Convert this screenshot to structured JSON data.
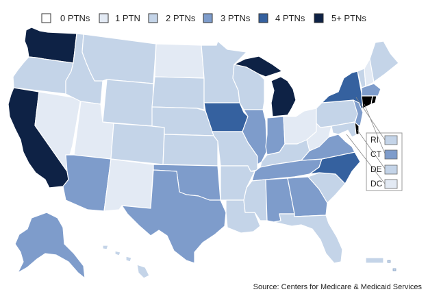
{
  "legend": {
    "items": [
      {
        "label": "0 PTNs",
        "color": "#ffffff"
      },
      {
        "label": "1 PTN",
        "color": "#e3eaf4"
      },
      {
        "label": "2 PTNs",
        "color": "#c4d4e8"
      },
      {
        "label": "3 PTNs",
        "color": "#7e9ccb"
      },
      {
        "label": "4 PTNs",
        "color": "#35619f"
      },
      {
        "label": "5+ PTNs",
        "color": "#0e2245"
      }
    ]
  },
  "small_states": [
    {
      "label": "RI",
      "color": "#c4d4e8"
    },
    {
      "label": "CT",
      "color": "#7e9ccb"
    },
    {
      "label": "DE",
      "color": "#c4d4e8"
    },
    {
      "label": "DC",
      "color": "#e3eaf4"
    }
  ],
  "source": "Source: Centers for Medicare & Medicaid Services",
  "states": {
    "WA": "#0e2245",
    "OR": "#c4d4e8",
    "CA": "#0e2245",
    "NV": "#e3eaf4",
    "ID": "#c4d4e8",
    "MT": "#c4d4e8",
    "WY": "#c4d4e8",
    "UT": "#e3eaf4",
    "AZ": "#7e9ccb",
    "CO": "#c4d4e8",
    "NM": "#e3eaf4",
    "ND": "#e3eaf4",
    "SD": "#c4d4e8",
    "NE": "#c4d4e8",
    "KS": "#c4d4e8",
    "OK": "#7e9ccb",
    "TX": "#7e9ccb",
    "MN": "#c4d4e8",
    "IA": "#35619f",
    "MO": "#c4d4e8",
    "AR": "#c4d4e8",
    "LA": "#c4d4e8",
    "WI": "#c4d4e8",
    "IL": "#7e9ccb",
    "MI": "#0e2245",
    "IN": "#7e9ccb",
    "OH": "#e3eaf4",
    "KY": "#c4d4e8",
    "TN": "#7e9ccb",
    "MS": "#c4d4e8",
    "AL": "#7e9ccb",
    "GA": "#7e9ccb",
    "FL": "#c4d4e8",
    "SC": "#c4d4e8",
    "NC": "#35619f",
    "VA": "#7e9ccb",
    "WV": "#e3eaf4",
    "PA": "#c4d4e8",
    "NY": "#35619f",
    "NJ": "#7e9ccb",
    "MD": "#c4d4e8",
    "VT": "#c4d4e8",
    "NH": "#e3eaf4",
    "ME": "#c4d4e8",
    "MA": "#7e9ccb",
    "AK": "#7e9ccb",
    "HI": "#c4d4e8",
    "PR": "#c4d4e8"
  }
}
